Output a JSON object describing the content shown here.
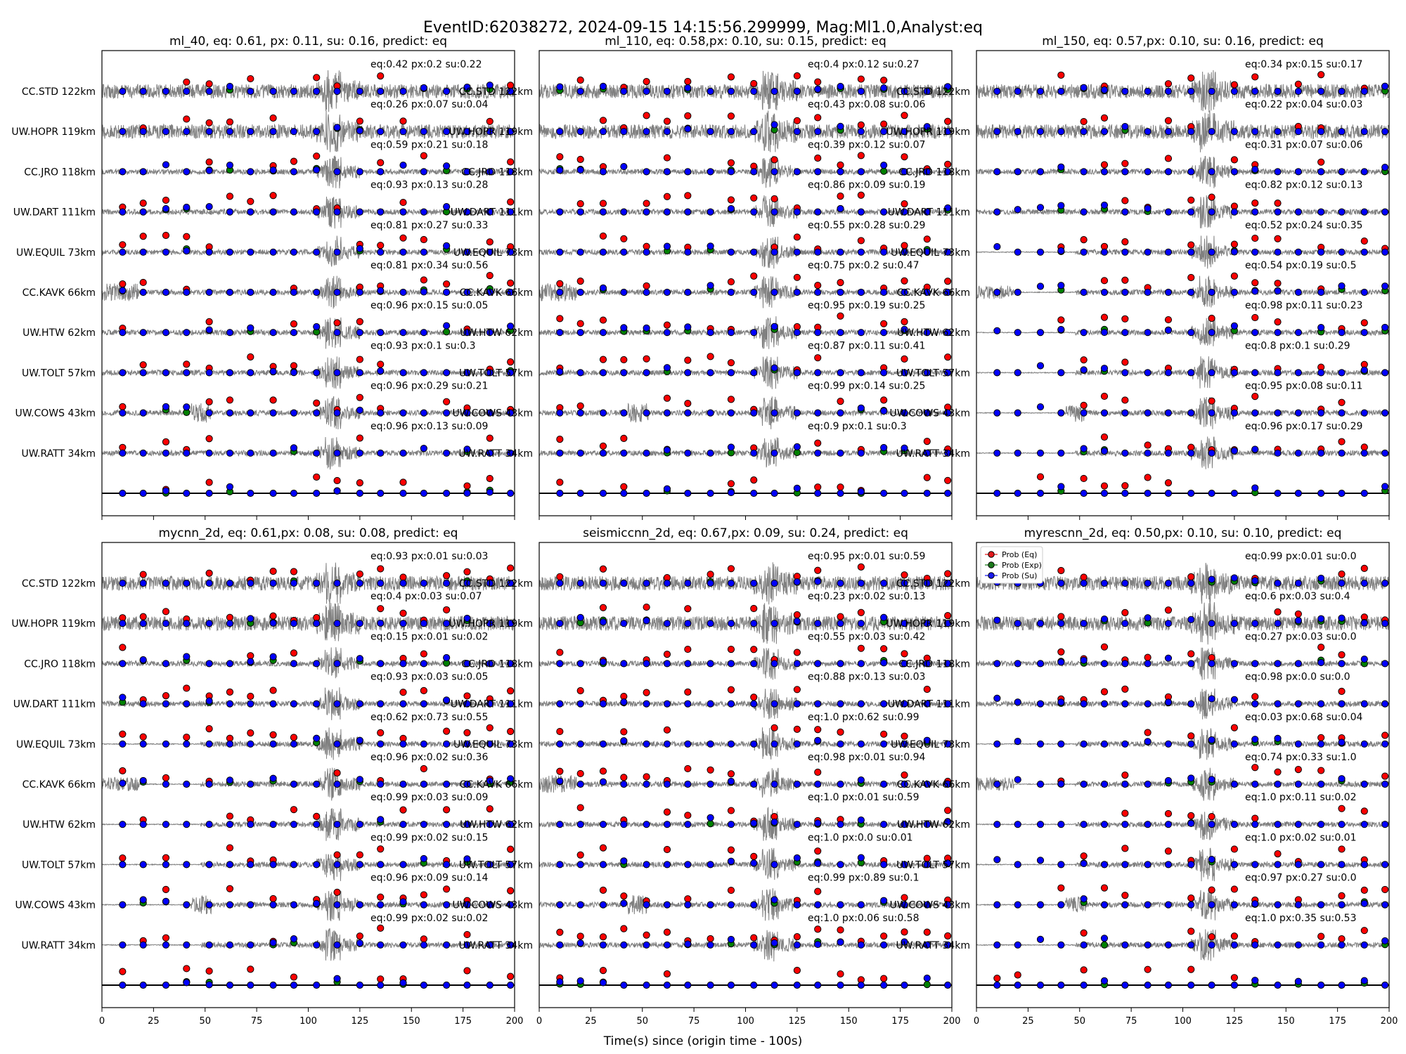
{
  "figure": {
    "title": "EventID:62038272, 2024-09-15 14:15:56.299999, Mag:Ml1.0,Analyst:eq",
    "xlabel": "Time(s) since (origin time - 100s)"
  },
  "stations": [
    "CC.STD 122km",
    "UW.HOPR 119km",
    "CC.JRO 118km",
    "UW.DART 111km",
    "UW.EQUIL 73km",
    "CC.KAVK 66km",
    "UW.HTW 62km",
    "UW.TOLT 57km",
    "UW.COWS 43km",
    "UW.RATT 34km"
  ],
  "legend": [
    {
      "label": "Prob (Eq)",
      "color": "#e41a1c"
    },
    {
      "label": "Prob (Exp)",
      "color": "#1a7a1a"
    },
    {
      "label": "Prob (Su)",
      "color": "#1a1aee"
    }
  ],
  "colors": {
    "eq": "#ff0000",
    "exp": "#008000",
    "su": "#0000ff",
    "waveform": "#808080"
  },
  "chart_data": [
    {
      "type": "scatter",
      "title": "ml_40, eq: 0.61, px: 0.11, su: 0.16, predict: eq",
      "xlim": [
        0,
        200
      ],
      "xticks": [
        0,
        25,
        50,
        75,
        100,
        125,
        150,
        175,
        200
      ],
      "show_tick_labels": false,
      "legend": false,
      "quiet_before": false,
      "annotations": [
        "eq:0.42 px:0.2 su:0.22",
        "eq:0.26 px:0.07 su:0.04",
        "eq:0.59 px:0.21 su:0.18",
        "eq:0.93 px:0.13 su:0.28",
        "eq:0.81 px:0.27 su:0.33",
        "eq:0.81 px:0.34 su:0.56",
        "eq:0.96 px:0.15 su:0.05",
        "eq:0.93 px:0.1 su:0.3",
        "eq:0.96 px:0.29 su:0.21",
        "eq:0.96 px:0.13 su:0.09"
      ]
    },
    {
      "type": "scatter",
      "title": "ml_110, eq: 0.58,px: 0.10, su: 0.15, predict: eq",
      "xlim": [
        0,
        200
      ],
      "xticks": [
        0,
        25,
        50,
        75,
        100,
        125,
        150,
        175,
        200
      ],
      "show_tick_labels": false,
      "legend": false,
      "quiet_before": false,
      "annotations": [
        "eq:0.4 px:0.12 su:0.27",
        "eq:0.43 px:0.08 su:0.06",
        "eq:0.39 px:0.12 su:0.07",
        "eq:0.86 px:0.09 su:0.19",
        "eq:0.55 px:0.28 su:0.29",
        "eq:0.75 px:0.2 su:0.47",
        "eq:0.95 px:0.19 su:0.25",
        "eq:0.87 px:0.11 su:0.41",
        "eq:0.99 px:0.14 su:0.25",
        "eq:0.9 px:0.1 su:0.3"
      ]
    },
    {
      "type": "scatter",
      "title": "ml_150, eq: 0.57,px: 0.10, su: 0.16, predict: eq",
      "xlim": [
        0,
        200
      ],
      "xticks": [
        0,
        25,
        50,
        75,
        100,
        125,
        150,
        175,
        200
      ],
      "show_tick_labels": false,
      "legend": false,
      "quiet_before": true,
      "annotations": [
        "eq:0.34 px:0.15 su:0.17",
        "eq:0.22 px:0.04 su:0.03",
        "eq:0.31 px:0.07 su:0.06",
        "eq:0.82 px:0.12 su:0.13",
        "eq:0.52 px:0.24 su:0.35",
        "eq:0.54 px:0.19 su:0.5",
        "eq:0.98 px:0.11 su:0.23",
        "eq:0.8 px:0.1 su:0.29",
        "eq:0.95 px:0.08 su:0.11",
        "eq:0.96 px:0.17 su:0.29"
      ]
    },
    {
      "type": "scatter",
      "title": "mycnn_2d, eq: 0.61,px: 0.08, su: 0.08, predict: eq",
      "xlim": [
        0,
        200
      ],
      "xticks": [
        0,
        25,
        50,
        75,
        100,
        125,
        150,
        175,
        200
      ],
      "show_tick_labels": true,
      "legend": false,
      "quiet_before": true,
      "annotations": [
        "eq:0.93 px:0.01 su:0.03",
        "eq:0.4 px:0.03 su:0.07",
        "eq:0.15 px:0.01 su:0.02",
        "eq:0.93 px:0.03 su:0.05",
        "eq:0.62 px:0.73 su:0.55",
        "eq:0.96 px:0.02 su:0.36",
        "eq:0.99 px:0.03 su:0.09",
        "eq:0.99 px:0.02 su:0.15",
        "eq:0.96 px:0.09 su:0.14",
        "eq:0.99 px:0.02 su:0.02"
      ]
    },
    {
      "type": "scatter",
      "title": "seismiccnn_2d, eq: 0.67,px: 0.09, su: 0.24, predict: eq",
      "xlim": [
        0,
        200
      ],
      "xticks": [
        0,
        25,
        50,
        75,
        100,
        125,
        150,
        175,
        200
      ],
      "show_tick_labels": true,
      "legend": false,
      "quiet_before": false,
      "annotations": [
        "eq:0.95 px:0.01 su:0.59",
        "eq:0.23 px:0.02 su:0.13",
        "eq:0.55 px:0.03 su:0.42",
        "eq:0.88 px:0.13 su:0.03",
        "eq:1.0 px:0.62 su:0.99",
        "eq:0.98 px:0.01 su:0.94",
        "eq:1.0 px:0.01 su:0.59",
        "eq:1.0 px:0.0 su:0.01",
        "eq:0.99 px:0.89 su:0.1",
        "eq:1.0 px:0.06 su:0.58"
      ]
    },
    {
      "type": "scatter",
      "title": "myrescnn_2d, eq: 0.50,px: 0.10, su: 0.10, predict: eq",
      "xlim": [
        0,
        200
      ],
      "xticks": [
        0,
        25,
        50,
        75,
        100,
        125,
        150,
        175,
        200
      ],
      "show_tick_labels": true,
      "legend": true,
      "quiet_before": true,
      "annotations": [
        "eq:0.99 px:0.01 su:0.0",
        "eq:0.6 px:0.03 su:0.4",
        "eq:0.27 px:0.03 su:0.0",
        "eq:0.98 px:0.0 su:0.0",
        "eq:0.03 px:0.68 su:0.04",
        "eq:0.74 px:0.33 su:1.0",
        "eq:1.0 px:0.11 su:0.02",
        "eq:1.0 px:0.02 su:0.01",
        "eq:0.97 px:0.27 su:0.0",
        "eq:1.0 px:0.35 su:0.53"
      ]
    }
  ]
}
